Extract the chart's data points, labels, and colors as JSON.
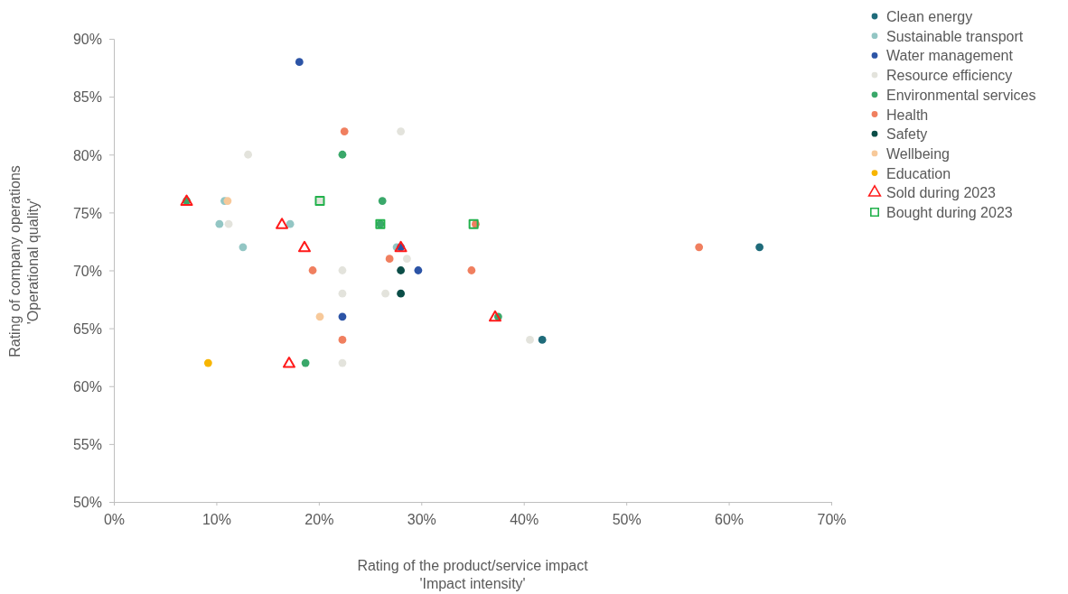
{
  "chart_data": {
    "type": "scatter",
    "xlabel": "Rating of the product/service impact\n'Impact intensity'",
    "ylabel": "Rating of company operations\n'Operational quality'",
    "xlim": [
      0,
      70
    ],
    "xticks": [
      {
        "value": 0,
        "label": "0%"
      },
      {
        "value": 10,
        "label": "10%"
      },
      {
        "value": 20,
        "label": "20%"
      },
      {
        "value": 30,
        "label": "30%"
      },
      {
        "value": 40,
        "label": "40%"
      },
      {
        "value": 50,
        "label": "50%"
      },
      {
        "value": 60,
        "label": "60%"
      },
      {
        "value": 70,
        "label": "70%"
      }
    ],
    "ylim": [
      50,
      90
    ],
    "yticks": [
      {
        "value": 50,
        "label": "50%"
      },
      {
        "value": 55,
        "label": "55%"
      },
      {
        "value": 60,
        "label": "60%"
      },
      {
        "value": 65,
        "label": "65%"
      },
      {
        "value": 70,
        "label": "70%"
      },
      {
        "value": 75,
        "label": "75%"
      },
      {
        "value": 80,
        "label": "80%"
      },
      {
        "value": 85,
        "label": "85%"
      },
      {
        "value": 90,
        "label": "90%"
      }
    ],
    "grid": false,
    "legend": "right",
    "series": [
      {
        "name": "Clean energy",
        "color": "#1f6b7a",
        "marker": "circle",
        "x": [
          63,
          41.8
        ],
        "values": [
          72,
          64
        ]
      },
      {
        "name": "Sustainable transport",
        "color": "#93c6c4",
        "marker": "circle",
        "x": [
          10.8,
          10.3,
          17.2,
          12.6,
          27.6
        ],
        "values": [
          76,
          74,
          74,
          72,
          72
        ]
      },
      {
        "name": "Water management",
        "color": "#2c54a6",
        "marker": "circle",
        "x": [
          18.1,
          28,
          29.7,
          22.3
        ],
        "values": [
          88,
          72,
          70,
          66
        ]
      },
      {
        "name": "Resource efficiency",
        "color": "#e3e3dc",
        "marker": "circle",
        "x": [
          28,
          13.1,
          20.1,
          11.2,
          28.6,
          22.3,
          22.3,
          26.5,
          40.6,
          22.3
        ],
        "values": [
          82,
          80,
          76,
          74,
          71,
          70,
          68,
          68,
          64,
          62
        ]
      },
      {
        "name": "Environmental services",
        "color": "#3aa86a",
        "marker": "circle",
        "x": [
          22.3,
          7.1,
          26.2,
          26,
          37.5,
          18.7
        ],
        "values": [
          80,
          76,
          76,
          74,
          66,
          62
        ]
      },
      {
        "name": "Health",
        "color": "#f07f5f",
        "marker": "circle",
        "x": [
          22.5,
          35.3,
          57.1,
          26.9,
          19.4,
          34.9,
          22.3
        ],
        "values": [
          82,
          74,
          72,
          71,
          70,
          70,
          64
        ]
      },
      {
        "name": "Safety",
        "color": "#0b4d47",
        "marker": "circle",
        "x": [
          28,
          28
        ],
        "values": [
          70,
          68
        ]
      },
      {
        "name": "Wellbeing",
        "color": "#f7c99a",
        "marker": "circle",
        "x": [
          11.1,
          20.1
        ],
        "values": [
          76,
          66
        ]
      },
      {
        "name": "Education",
        "color": "#f7b500",
        "marker": "circle",
        "x": [
          9.2
        ],
        "values": [
          62
        ]
      },
      {
        "name": "Sold during 2023",
        "color": "#ff1a1a",
        "marker": "triangle",
        "x": [
          7.1,
          16.4,
          18.6,
          28,
          37.2,
          17.1
        ],
        "values": [
          76,
          74,
          72,
          72,
          66,
          62
        ]
      },
      {
        "name": "Bought during 2023",
        "color": "#22b14c",
        "marker": "square",
        "x": [
          20.1,
          26,
          35.1
        ],
        "values": [
          76,
          74,
          74
        ]
      }
    ]
  }
}
